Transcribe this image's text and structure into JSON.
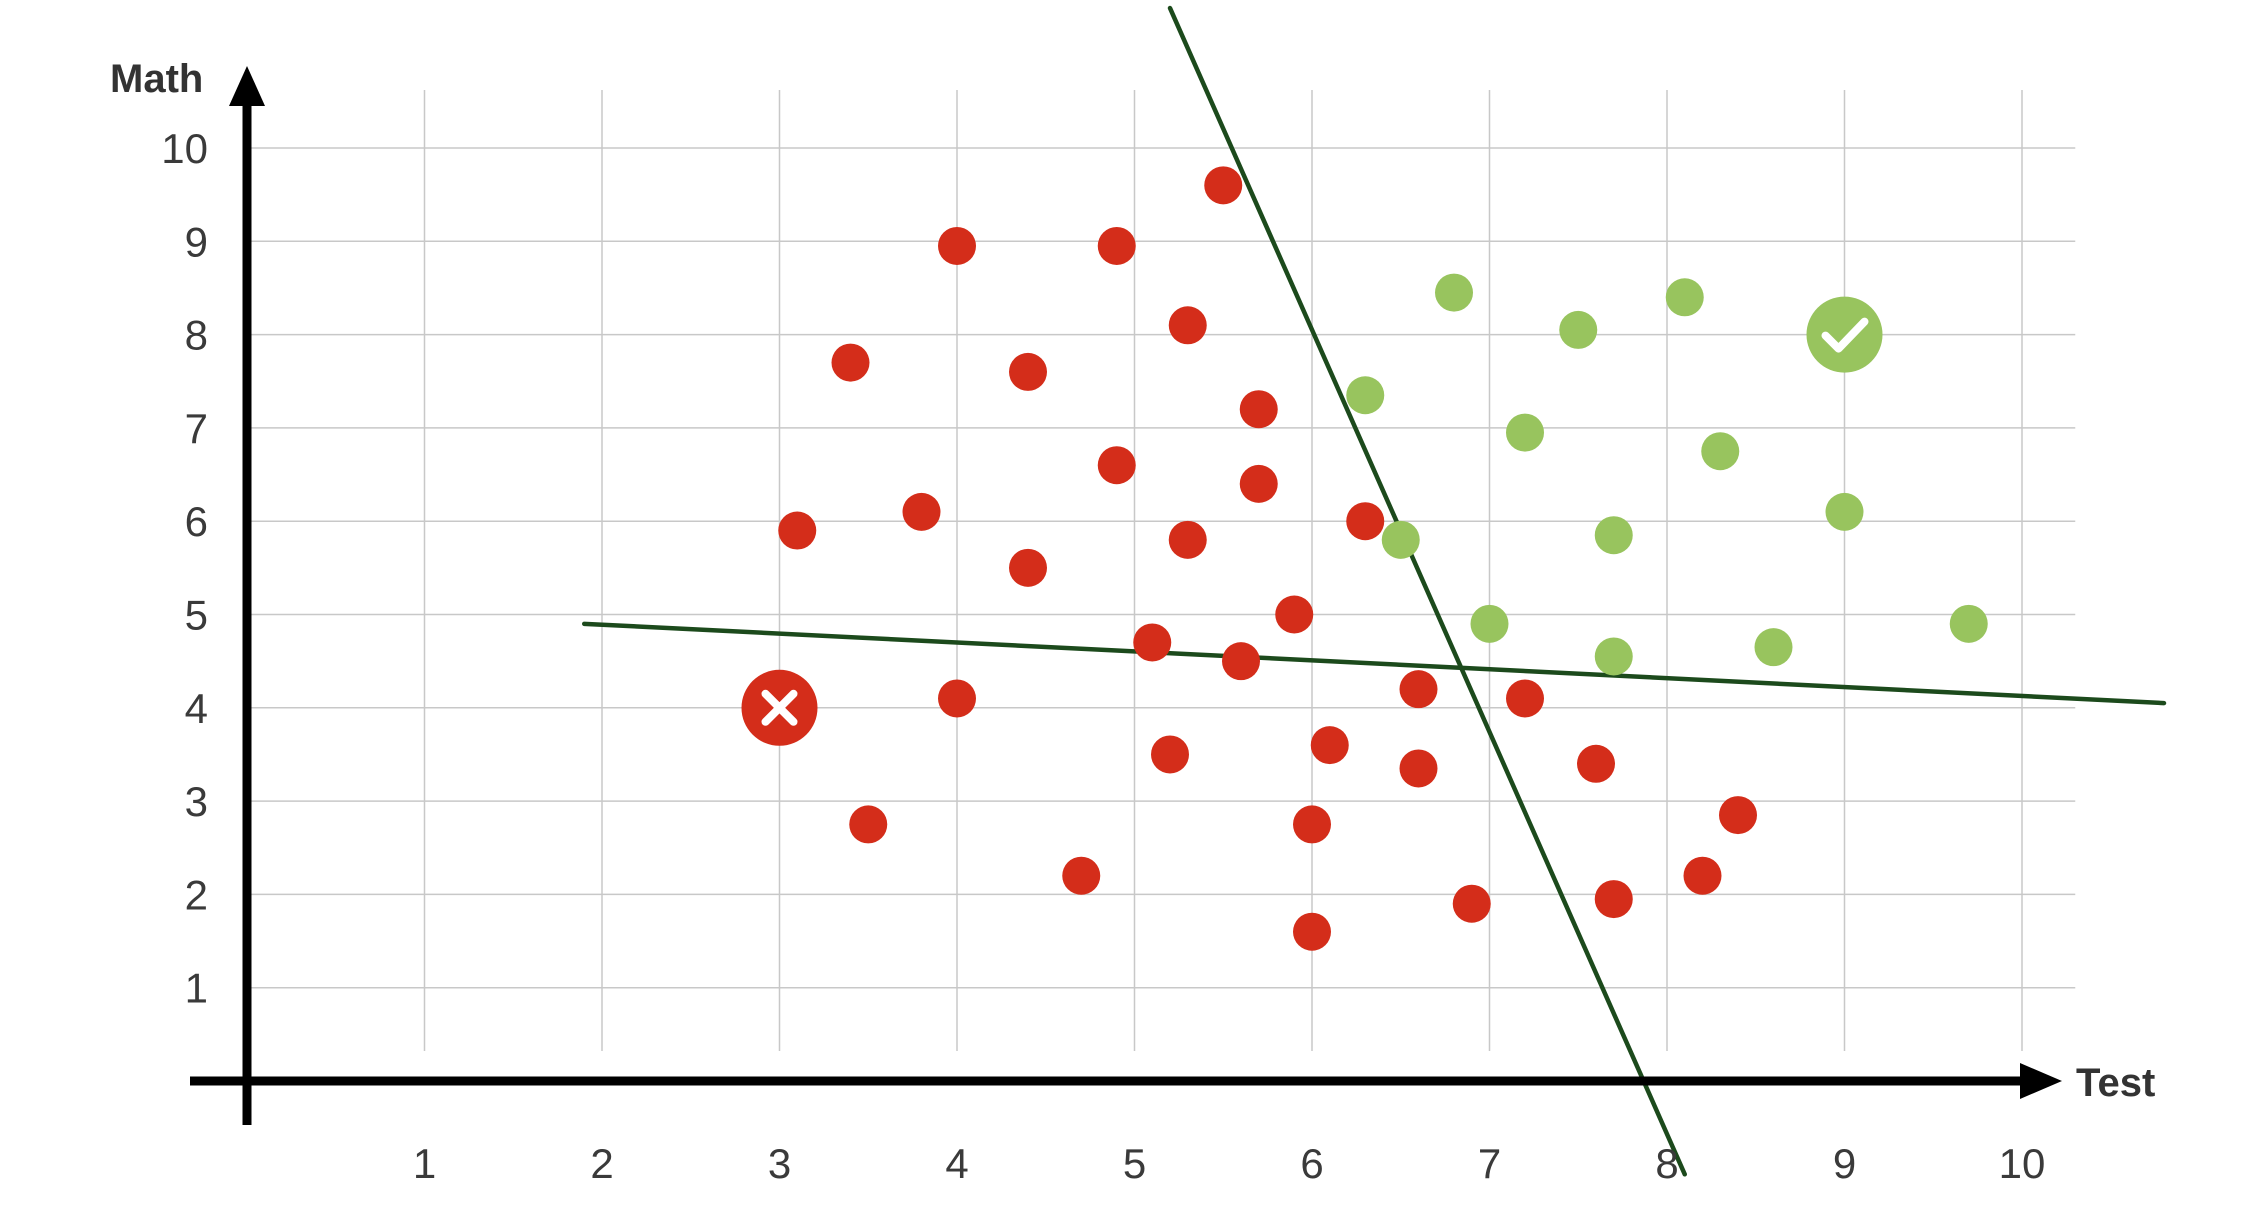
{
  "chart_data": {
    "type": "scatter",
    "xlabel": "Test",
    "ylabel": "Math",
    "xlim": [
      0,
      10
    ],
    "ylim": [
      0,
      10
    ],
    "x_ticks": [
      "1",
      "2",
      "3",
      "4",
      "5",
      "6",
      "7",
      "8",
      "9",
      "10"
    ],
    "y_ticks": [
      "1",
      "2",
      "3",
      "4",
      "5",
      "6",
      "7",
      "8",
      "9",
      "10"
    ],
    "grid": true,
    "colors": {
      "rejected": "#d42d1a",
      "accepted": "#98c45e",
      "boundary": "#1c4a1c",
      "axis": "#000000",
      "grid": "#c8c8c8"
    },
    "series": [
      {
        "class": "rejected",
        "points": [
          [
            5.5,
            9.6
          ],
          [
            4.0,
            8.95
          ],
          [
            4.9,
            8.95
          ],
          [
            5.3,
            8.1
          ],
          [
            3.4,
            7.7
          ],
          [
            4.4,
            7.6
          ],
          [
            5.7,
            7.2
          ],
          [
            4.9,
            6.6
          ],
          [
            5.7,
            6.4
          ],
          [
            3.1,
            5.9
          ],
          [
            3.8,
            6.1
          ],
          [
            5.3,
            5.8
          ],
          [
            6.3,
            6.0
          ],
          [
            4.4,
            5.5
          ],
          [
            5.9,
            5.0
          ],
          [
            5.1,
            4.7
          ],
          [
            5.6,
            4.5
          ],
          [
            4.0,
            4.1
          ],
          [
            6.6,
            4.2
          ],
          [
            7.2,
            4.1
          ],
          [
            5.2,
            3.5
          ],
          [
            6.1,
            3.6
          ],
          [
            6.6,
            3.35
          ],
          [
            7.6,
            3.4
          ],
          [
            3.5,
            2.75
          ],
          [
            6.0,
            2.75
          ],
          [
            8.4,
            2.85
          ],
          [
            4.7,
            2.2
          ],
          [
            8.2,
            2.2
          ],
          [
            6.9,
            1.9
          ],
          [
            7.7,
            1.95
          ],
          [
            6.0,
            1.6
          ]
        ]
      },
      {
        "class": "accepted",
        "points": [
          [
            6.8,
            8.45
          ],
          [
            8.1,
            8.4
          ],
          [
            7.5,
            8.05
          ],
          [
            6.3,
            7.35
          ],
          [
            7.2,
            6.95
          ],
          [
            8.3,
            6.75
          ],
          [
            6.5,
            5.8
          ],
          [
            7.7,
            5.85
          ],
          [
            9.0,
            6.1
          ],
          [
            7.0,
            4.9
          ],
          [
            7.7,
            4.55
          ],
          [
            8.6,
            4.65
          ],
          [
            9.7,
            4.9
          ]
        ]
      }
    ],
    "highlighted_points": [
      {
        "x": 3,
        "y": 4,
        "class": "rejected",
        "icon": "cross-icon"
      },
      {
        "x": 9,
        "y": 8,
        "class": "accepted",
        "icon": "check-icon"
      }
    ],
    "boundary_lines": [
      {
        "from": [
          1.9,
          4.9
        ],
        "to": [
          10.8,
          4.05
        ]
      },
      {
        "from": [
          5.2,
          11.5
        ],
        "to": [
          8.1,
          -1.0
        ]
      }
    ]
  }
}
